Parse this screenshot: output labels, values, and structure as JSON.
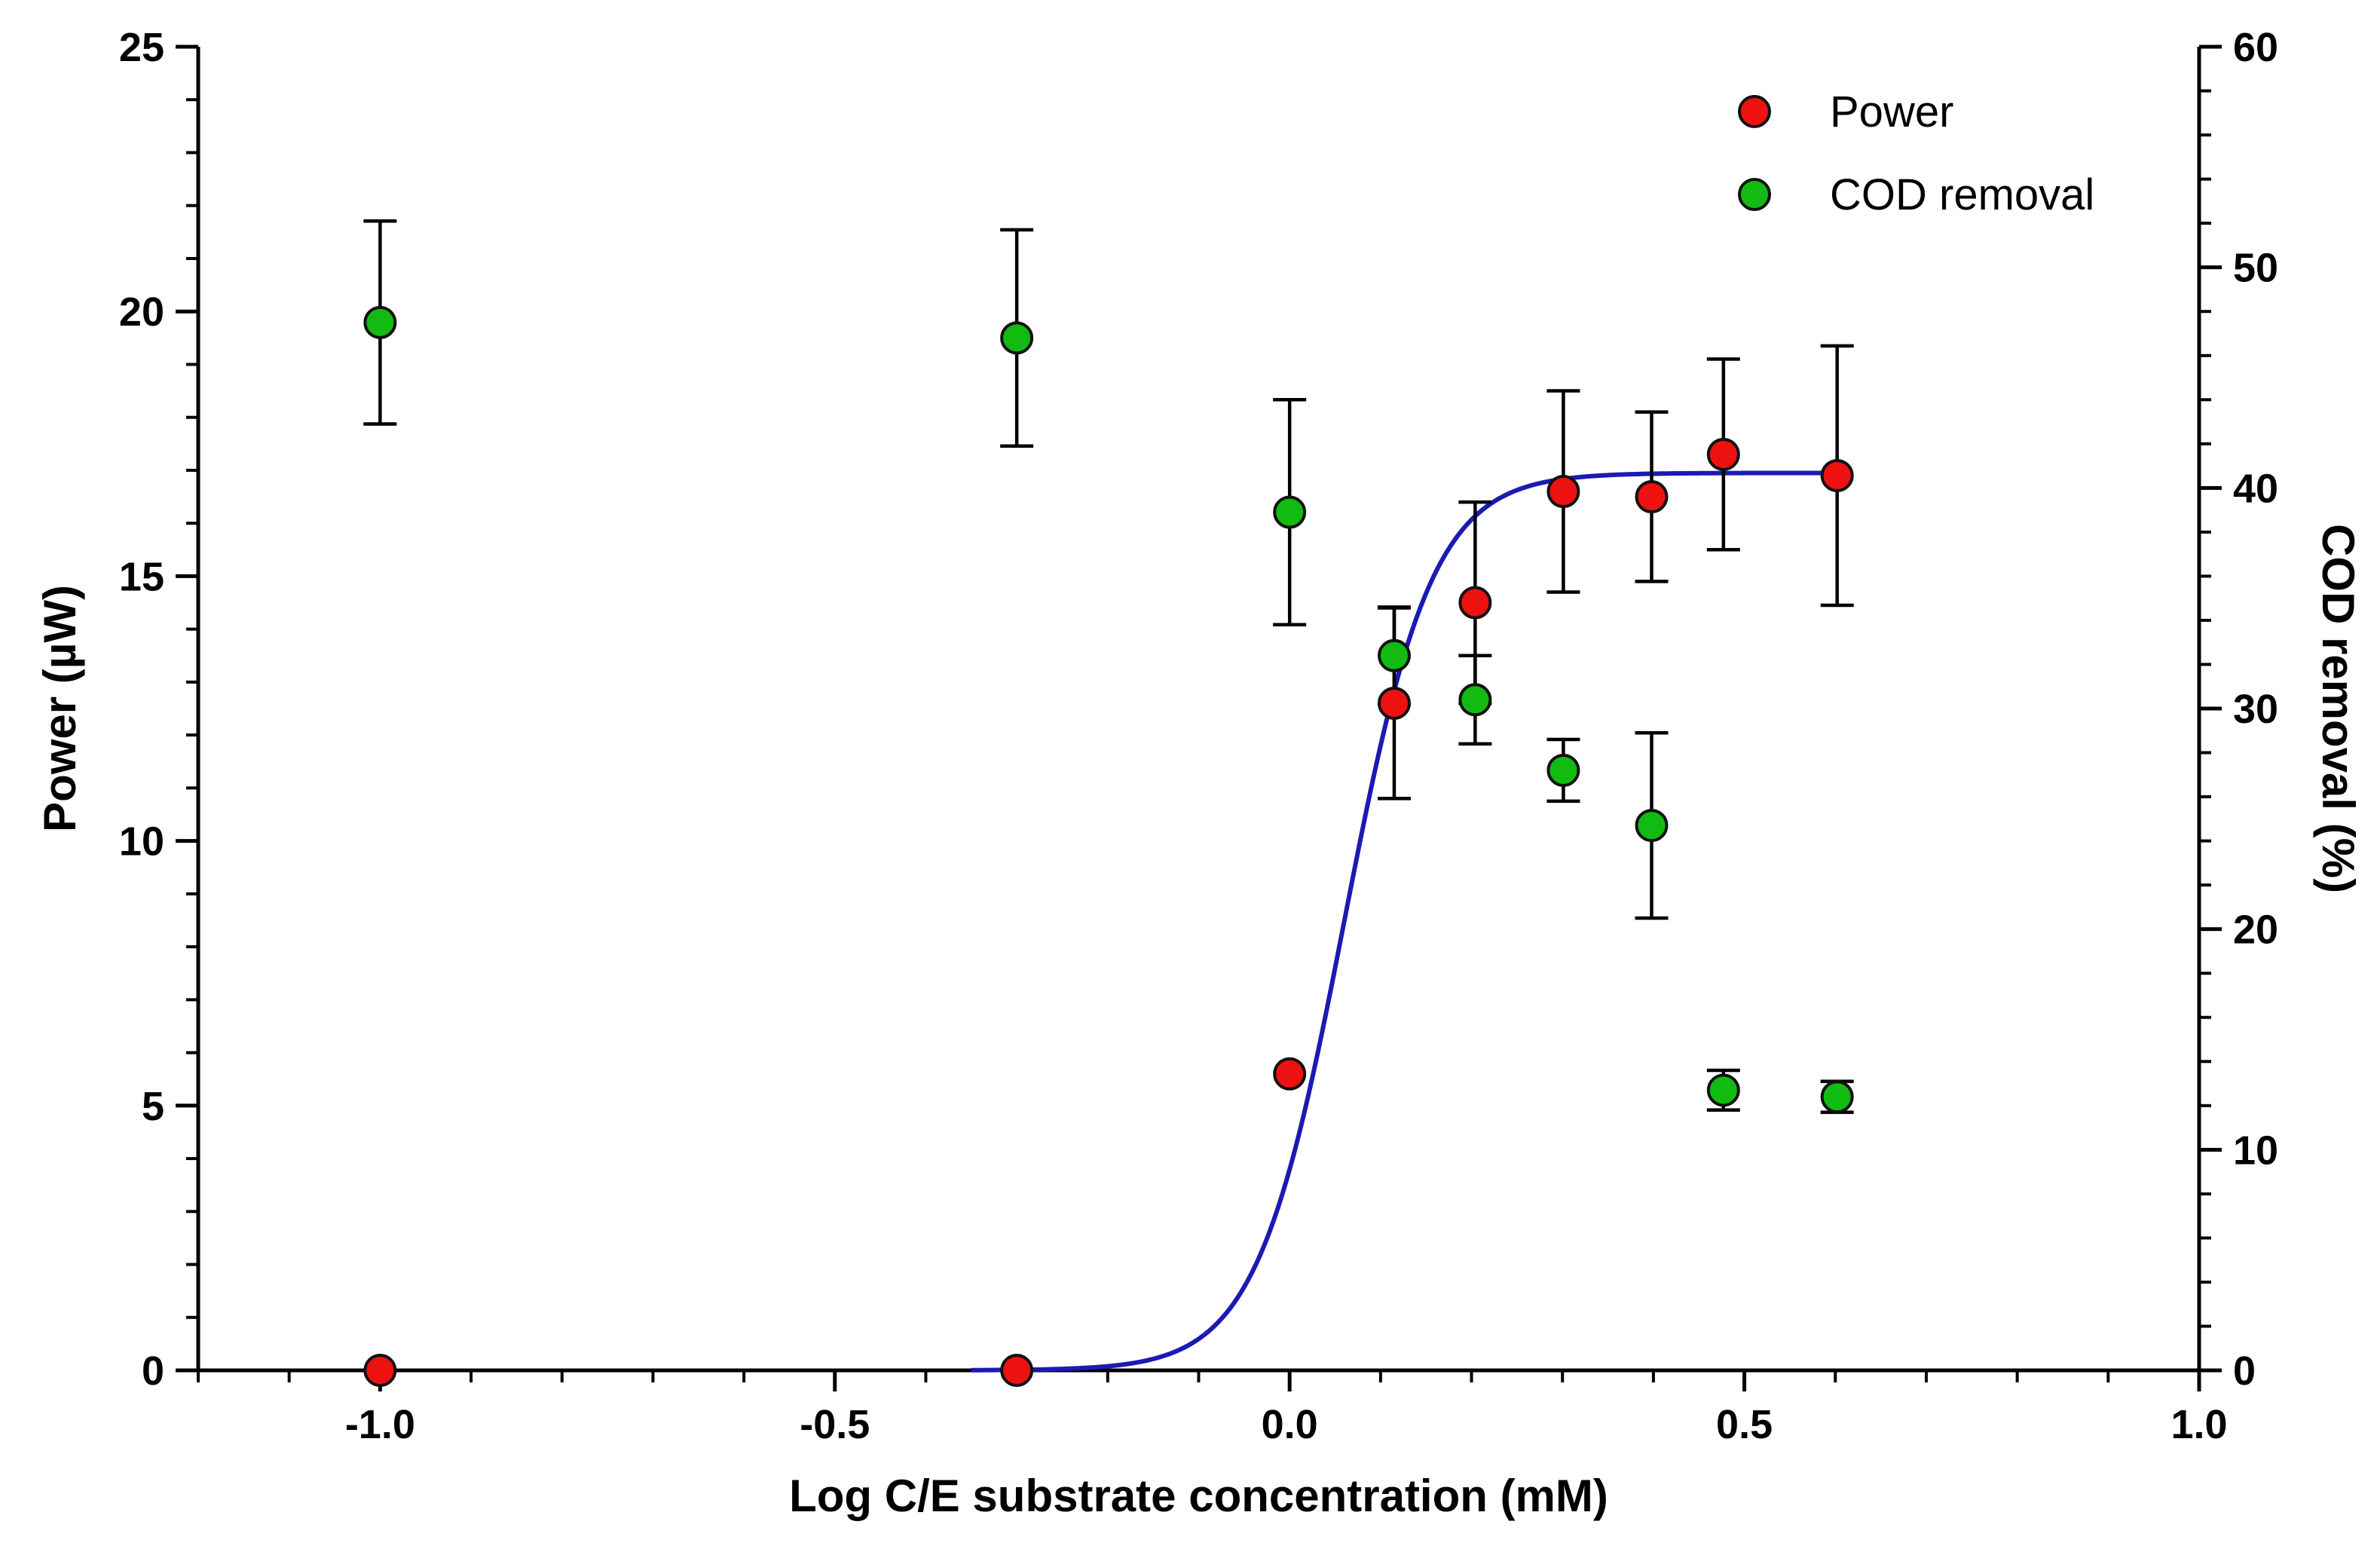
{
  "chart_data": {
    "type": "scatter",
    "xlabel": "Log C/E substrate concentration (mM)",
    "ylabel_left": "Power (µW)",
    "ylabel_right": "COD removal (%)",
    "xlim": [
      -1.2,
      1.0
    ],
    "ylim_left": [
      0,
      25
    ],
    "ylim_right": [
      0,
      60
    ],
    "x_ticks": [
      -1.0,
      -0.5,
      0.0,
      0.5,
      1.0
    ],
    "x_tick_labels": [
      "-1.0",
      "-0.5",
      "0.0",
      "0.5",
      "1.0"
    ],
    "y_left_ticks": [
      0,
      5,
      10,
      15,
      20,
      25
    ],
    "y_left_tick_labels": [
      "0",
      "5",
      "10",
      "15",
      "20",
      "25"
    ],
    "y_right_ticks": [
      0,
      10,
      20,
      30,
      40,
      50,
      60
    ],
    "y_right_tick_labels": [
      "0",
      "10",
      "20",
      "30",
      "40",
      "50",
      "60"
    ],
    "grid": false,
    "legend_position": "top-right",
    "series": [
      {
        "name": "Power",
        "axis": "left",
        "color": "#ee1111",
        "x": [
          -1.0,
          -0.3,
          0.0,
          0.115,
          0.204,
          0.301,
          0.398,
          0.477,
          0.602
        ],
        "y": [
          0.0,
          0.0,
          5.6,
          12.6,
          14.5,
          16.6,
          16.5,
          17.3,
          16.9
        ],
        "err": [
          0.0,
          0.0,
          0.0,
          1.8,
          1.9,
          1.9,
          1.6,
          1.8,
          2.45
        ]
      },
      {
        "name": "COD removal",
        "axis": "right",
        "color": "#11bb11",
        "x": [
          -1.0,
          -0.3,
          0.0,
          0.115,
          0.204,
          0.301,
          0.398,
          0.477,
          0.602
        ],
        "y": [
          47.5,
          46.8,
          38.9,
          32.4,
          30.4,
          27.2,
          24.7,
          12.7,
          12.4
        ],
        "err": [
          4.6,
          4.9,
          5.1,
          2.2,
          2.0,
          1.4,
          4.2,
          0.9,
          0.7
        ]
      }
    ],
    "fit": {
      "name": "Power fit",
      "axis": "left",
      "color": "#1a1ab4",
      "model": "sigmoid",
      "bottom": 0.0,
      "top": 16.95,
      "logEC50": 0.06,
      "hill": 9.0,
      "x_range": [
        -0.35,
        0.6
      ]
    }
  }
}
